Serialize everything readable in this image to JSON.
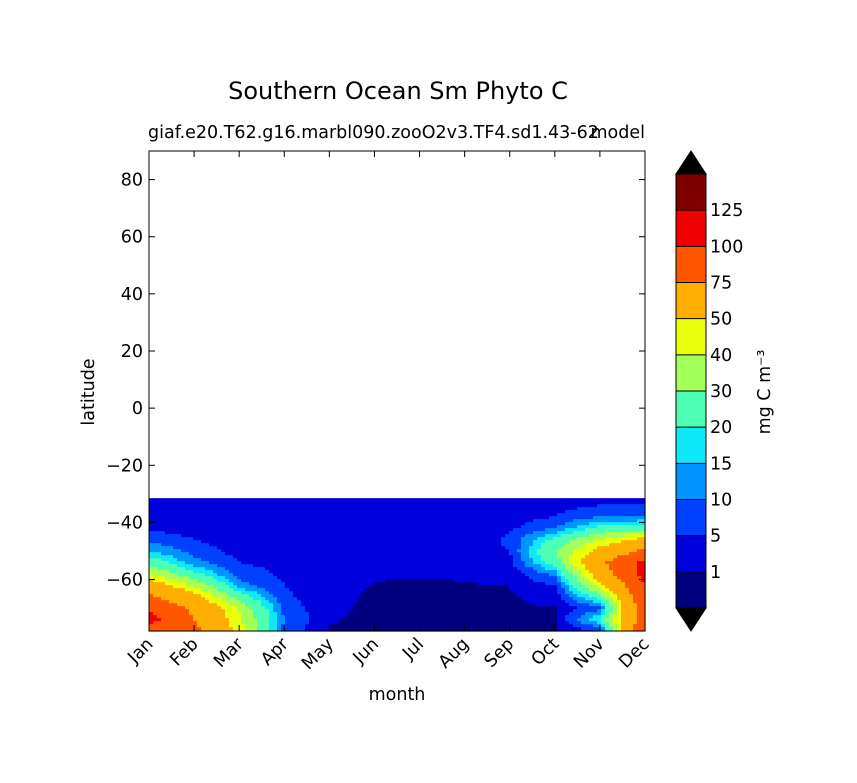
{
  "chart_data": {
    "type": "heatmap",
    "title": "Southern Ocean Sm Phyto C",
    "subtitle_left": "giaf.e20.T62.g16.marbl090.zooO2v3.TF4.sd1.43-62",
    "subtitle_right": "model",
    "xlabel": "month",
    "ylabel": "latitude",
    "x_categories": [
      "Jan",
      "Feb",
      "Mar",
      "Apr",
      "May",
      "Jun",
      "Jul",
      "Aug",
      "Sep",
      "Oct",
      "Nov",
      "Dec"
    ],
    "ylim": [
      -78,
      90
    ],
    "yticks": [
      80,
      60,
      40,
      20,
      0,
      -20,
      -40,
      -60
    ],
    "ytick_labels": [
      "80",
      "60",
      "40",
      "20",
      "0",
      "−20",
      "−40",
      "−60"
    ],
    "data_lat_range": [
      -78,
      -31.5
    ],
    "colorbar": {
      "label": "mg C m⁻³",
      "levels": [
        0,
        1,
        5,
        10,
        15,
        20,
        30,
        40,
        50,
        75,
        100,
        125,
        150
      ],
      "tick_labels": [
        "1",
        "5",
        "10",
        "15",
        "20",
        "30",
        "40",
        "50",
        "75",
        "100",
        "125"
      ],
      "extend": "both",
      "colors": [
        "#00007f",
        "#0000dc",
        "#0040ff",
        "#0094ff",
        "#0fe8f8",
        "#4dffb3",
        "#a3ff5a",
        "#eaff0b",
        "#ffad00",
        "#ff5600",
        "#f00000",
        "#800000"
      ],
      "under_color": "#000000",
      "over_color": "#000000"
    },
    "monthly_profiles": [
      {
        "month": "Jan",
        "lat": [
          -78,
          -74,
          -70,
          -66,
          -62,
          -58,
          -54,
          -50,
          -46,
          -42,
          -38,
          -34,
          -31.5
        ],
        "value": [
          85,
          110,
          95,
          80,
          60,
          40,
          25,
          15,
          8,
          4,
          2,
          1.5,
          1.5
        ]
      },
      {
        "month": "Feb",
        "lat": [
          -78,
          -74,
          -70,
          -66,
          -62,
          -58,
          -54,
          -50,
          -46,
          -42,
          -38,
          -34,
          -31.5
        ],
        "value": [
          80,
          75,
          70,
          55,
          38,
          22,
          12,
          8,
          5,
          3,
          2,
          1.5,
          1.5
        ]
      },
      {
        "month": "Mar",
        "lat": [
          -78,
          -74,
          -70,
          -66,
          -62,
          -58,
          -54,
          -50,
          -46,
          -42,
          -38,
          -34,
          -31.5
        ],
        "value": [
          45,
          42,
          38,
          25,
          12,
          8,
          5,
          3,
          2,
          1.5,
          1.2,
          1.2,
          1.2
        ]
      },
      {
        "month": "Apr",
        "lat": [
          -78,
          -74,
          -70,
          -66,
          -62,
          -58,
          -54,
          -50,
          -46,
          -42,
          -38,
          -34,
          -31.5
        ],
        "value": [
          8,
          10,
          8,
          6,
          5,
          4,
          3,
          2,
          1.5,
          1.2,
          1.2,
          1.1,
          1.1
        ]
      },
      {
        "month": "May",
        "lat": [
          -78,
          -74,
          -70,
          -66,
          -62,
          -58,
          -54,
          -50,
          -46,
          -42,
          -38,
          -34,
          -31.5
        ],
        "value": [
          0.8,
          1.2,
          1.4,
          1.6,
          1.8,
          2,
          2,
          1.8,
          1.5,
          1.3,
          1.2,
          1.1,
          1.1
        ]
      },
      {
        "month": "Jun",
        "lat": [
          -78,
          -74,
          -70,
          -66,
          -62,
          -58,
          -54,
          -50,
          -46,
          -42,
          -38,
          -34,
          -31.5
        ],
        "value": [
          0.5,
          0.5,
          0.6,
          0.7,
          0.9,
          1.2,
          1.5,
          1.5,
          1.4,
          1.2,
          1.1,
          1.1,
          1.1
        ]
      },
      {
        "month": "Jul",
        "lat": [
          -78,
          -74,
          -70,
          -66,
          -62,
          -58,
          -54,
          -50,
          -46,
          -42,
          -38,
          -34,
          -31.5
        ],
        "value": [
          0.4,
          0.4,
          0.5,
          0.6,
          0.8,
          1.1,
          1.4,
          1.5,
          1.5,
          1.3,
          1.2,
          1.2,
          1.2
        ]
      },
      {
        "month": "Aug",
        "lat": [
          -78,
          -74,
          -70,
          -66,
          -62,
          -58,
          -54,
          -50,
          -46,
          -42,
          -38,
          -34,
          -31.5
        ],
        "value": [
          0.4,
          0.5,
          0.6,
          0.7,
          0.9,
          1.2,
          1.6,
          2,
          2.2,
          1.8,
          1.5,
          1.3,
          1.3
        ]
      },
      {
        "month": "Sep",
        "lat": [
          -78,
          -74,
          -70,
          -66,
          -62,
          -58,
          -54,
          -50,
          -46,
          -42,
          -38,
          -34,
          -31.5
        ],
        "value": [
          0.5,
          0.6,
          0.7,
          0.8,
          1,
          2,
          3.5,
          5,
          6,
          4,
          2.5,
          1.8,
          1.8
        ]
      },
      {
        "month": "Oct",
        "lat": [
          -78,
          -74,
          -70,
          -66,
          -62,
          -58,
          -54,
          -50,
          -46,
          -42,
          -38,
          -34,
          -31.5
        ],
        "value": [
          0.6,
          0.7,
          0.9,
          2,
          5,
          12,
          25,
          30,
          22,
          10,
          5,
          3,
          3
        ]
      },
      {
        "month": "Nov",
        "lat": [
          -78,
          -74,
          -70,
          -66,
          -62,
          -58,
          -54,
          -50,
          -46,
          -42,
          -38,
          -34,
          -31.5
        ],
        "value": [
          5,
          20,
          8,
          25,
          45,
          60,
          70,
          55,
          40,
          22,
          10,
          5,
          4
        ]
      },
      {
        "month": "Dec",
        "lat": [
          -78,
          -74,
          -70,
          -66,
          -62,
          -58,
          -54,
          -50,
          -46,
          -42,
          -38,
          -34,
          -31.5
        ],
        "value": [
          100,
          85,
          90,
          95,
          100,
          110,
          105,
          80,
          55,
          25,
          10,
          5,
          4
        ]
      }
    ]
  }
}
